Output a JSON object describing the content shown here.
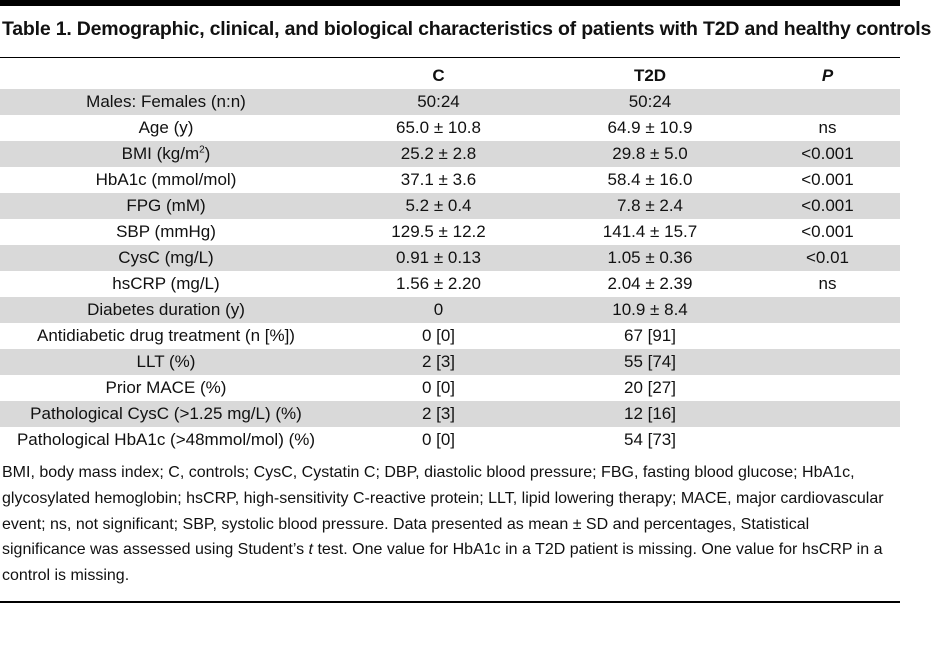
{
  "title": "Table 1. Demographic, clinical, and biological characteristics of patients with T2D and healthy controls",
  "columns": [
    "",
    "C",
    "T2D",
    "P"
  ],
  "rows": [
    {
      "label": "Males: Females (n:n)",
      "c": "50:24",
      "t2d": "50:24",
      "p": ""
    },
    {
      "label": "Age (y)",
      "c": "65.0 ± 10.8",
      "t2d": "64.9 ± 10.9",
      "p": "ns"
    },
    {
      "label": "BMI (kg/m",
      "label_sup": "2",
      "label_tail": ")",
      "c": "25.2 ± 2.8",
      "t2d": "29.8 ± 5.0",
      "p": "<0.001"
    },
    {
      "label": "HbA1c (mmol/mol)",
      "c": "37.1 ± 3.6",
      "t2d": "58.4 ± 16.0",
      "p": "<0.001"
    },
    {
      "label": "FPG (mM)",
      "c": "5.2 ± 0.4",
      "t2d": "7.8 ± 2.4",
      "p": "<0.001"
    },
    {
      "label": "SBP (mmHg)",
      "c": "129.5 ± 12.2",
      "t2d": "141.4 ± 15.7",
      "p": "<0.001"
    },
    {
      "label": "CysC (mg/L)",
      "c": "0.91 ± 0.13",
      "t2d": "1.05 ± 0.36",
      "p": "<0.01"
    },
    {
      "label": "hsCRP (mg/L)",
      "c": "1.56 ± 2.20",
      "t2d": "2.04 ± 2.39",
      "p": "ns"
    },
    {
      "label": "Diabetes duration (y)",
      "c": "0",
      "t2d": "10.9 ± 8.4",
      "p": ""
    },
    {
      "label": "Antidiabetic drug treatment (n [%])",
      "c": "0 [0]",
      "t2d": "67 [91]",
      "p": ""
    },
    {
      "label": "LLT (%)",
      "c": "2 [3]",
      "t2d": "55 [74]",
      "p": ""
    },
    {
      "label": "Prior MACE (%)",
      "c": "0 [0]",
      "t2d": "20 [27]",
      "p": ""
    },
    {
      "label": "Pathological CysC (>1.25 mg/L) (%)",
      "c": "2 [3]",
      "t2d": "12 [16]",
      "p": ""
    },
    {
      "label": "Pathological HbA1c (>48mmol/mol) (%)",
      "c": "0 [0]",
      "t2d": "54 [73]",
      "p": ""
    }
  ],
  "footnote": {
    "before_italic": "BMI, body mass index; C, controls; CysC, Cystatin C; DBP, diastolic blood pressure; FBG, fasting blood glucose; HbA1c, glycosylated hemoglobin; hsCRP, high-sensitivity C-reactive protein; LLT, lipid lowering therapy; MACE, major cardiovascular event; ns, not significant; SBP, systolic blood pressure. Data presented as mean ± SD and percentages, Statistical significance was assessed using Student’s ",
    "italic": "t",
    "after_italic": " test. One value for HbA1c in a T2D patient is missing. One value for hsCRP in a control is missing."
  }
}
